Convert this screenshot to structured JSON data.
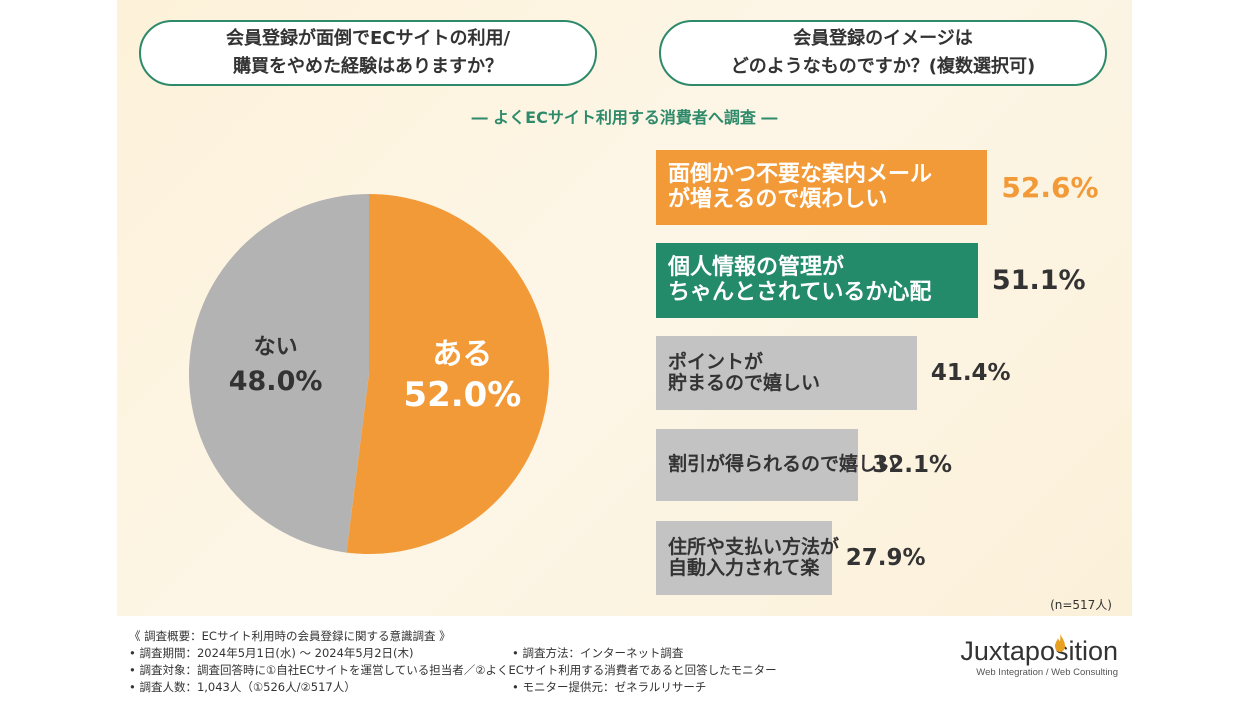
{
  "header": {
    "question1": "会員登録が面倒でECサイトの利用/\n購買をやめた経験はありますか？",
    "question2": "会員登録のイメージは\nどのようなものですか？(複数選択可)",
    "subtitle": "― よくECサイト利用する消費者へ調査 ―"
  },
  "chart_data": [
    {
      "type": "pie",
      "slices": [
        {
          "label": "ある",
          "value": 52.0,
          "display": "52.0%",
          "color": "#f29a38"
        },
        {
          "label": "ない",
          "value": 48.0,
          "display": "48.0%",
          "color": "#b3b3b3"
        }
      ]
    },
    {
      "type": "bar",
      "orientation": "horizontal",
      "xlim": [
        0,
        100
      ],
      "categories": [
        "面倒かつ不要な案内メール\nが増えるので煩わしい",
        "個人情報の管理が\nちゃんとされているか心配",
        "ポイントが\n貯まるので嬉しい",
        "割引が得られるので嬉しい",
        "住所や支払い方法が\n自動入力されて楽"
      ],
      "values": [
        52.6,
        51.1,
        41.4,
        32.1,
        27.9
      ],
      "display": [
        "52.6%",
        "51.1%",
        "41.4%",
        "32.1%",
        "27.9%"
      ],
      "colors": [
        "#f29a38",
        "#238a6a",
        "#c3c3c3",
        "#c3c3c3",
        "#c3c3c3"
      ],
      "n_label": "(n=517人)"
    }
  ],
  "footer": {
    "line1": "《 調査概要：ECサイト利用時の会員登録に関する意識調査 》",
    "line2": "• 調査期間：2024年5月1日(水) ～ 2024年5月2日(木)",
    "line3": "• 調査対象：調査回答時に①自社ECサイトを運営している担当者／②よくECサイト利用する消費者であると回答したモニター",
    "line4": "• 調査人数：1,043人（①526人/②517人）",
    "method": "• 調査方法：インターネット調査",
    "provider": "• モニター提供元：ゼネラルリサーチ"
  },
  "logo": {
    "name": "Juxtaposition",
    "tagline": "Web Integration / Web Consulting",
    "accent": "#e8a020"
  }
}
